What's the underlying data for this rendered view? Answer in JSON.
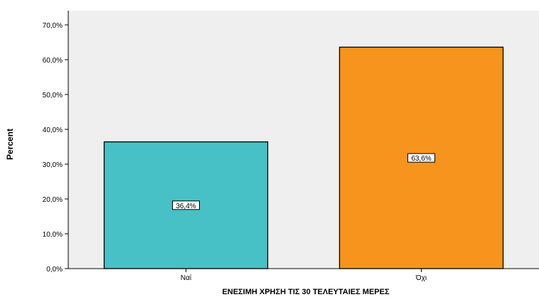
{
  "chart_data": {
    "type": "bar",
    "categories": [
      "Ναί",
      "Όχι"
    ],
    "values": [
      36.4,
      63.6
    ],
    "data_labels": [
      "36,4%",
      "63,6%"
    ],
    "colors": [
      "#47c1c5",
      "#f7941e"
    ],
    "ylabel": "Percent",
    "xlabel": "ΕΝΕΣΙΜΗ ΧΡΗΣΗ ΤΙΣ 30 ΤΕΛΕΥΤΑΙΕΣ ΜΕΡΕΣ",
    "ylim": [
      0,
      70
    ],
    "yticks": [
      {
        "value": 0,
        "label": "0,0%"
      },
      {
        "value": 10,
        "label": "10,0%"
      },
      {
        "value": 20,
        "label": "20,0%"
      },
      {
        "value": 30,
        "label": "30,0%"
      },
      {
        "value": 40,
        "label": "40,0%"
      },
      {
        "value": 50,
        "label": "50,0%"
      },
      {
        "value": 60,
        "label": "60,0%"
      },
      {
        "value": 70,
        "label": "70,0%"
      }
    ],
    "grid": false,
    "plot_background": "#efefef"
  }
}
